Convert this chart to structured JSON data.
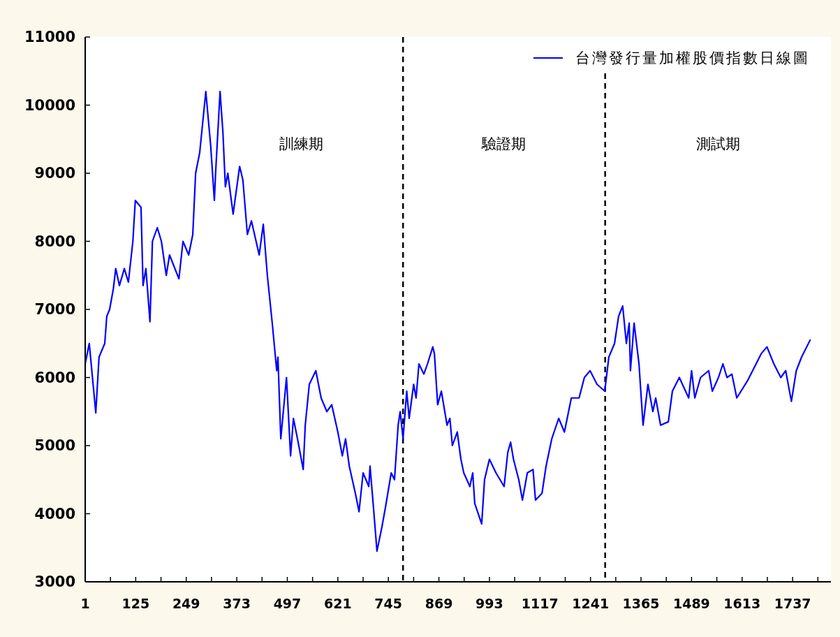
{
  "chart_data": {
    "type": "line",
    "x": [
      1,
      11,
      27,
      35,
      49,
      54,
      61,
      70,
      76,
      85,
      97,
      107,
      118,
      124,
      138,
      143,
      150,
      160,
      166,
      178,
      188,
      200,
      208,
      231,
      241,
      255,
      265,
      272,
      282,
      297,
      309,
      318,
      321,
      332,
      339,
      345,
      351,
      364,
      380,
      388,
      399,
      409,
      428,
      438,
      448,
      460,
      471,
      474,
      481,
      495,
      505,
      512,
      522,
      536,
      541,
      551,
      567,
      580,
      594,
      606,
      621,
      632,
      640,
      649,
      664,
      673,
      683,
      697,
      700,
      709,
      717,
      729,
      738,
      752,
      760,
      769,
      774,
      781,
      790,
      796,
      807,
      813,
      820,
      832,
      841,
      854,
      858,
      866,
      875,
      889,
      896,
      902,
      914,
      923,
      930,
      945,
      952,
      957,
      974,
      981,
      993,
      1009,
      1029,
      1038,
      1045,
      1052,
      1065,
      1074,
      1086,
      1100,
      1106,
      1122,
      1132,
      1146,
      1163,
      1177,
      1194,
      1213,
      1226,
      1240,
      1257,
      1276,
      1286,
      1300,
      1310,
      1320,
      1329,
      1336,
      1339,
      1348,
      1360,
      1370,
      1382,
      1394,
      1401,
      1413,
      1432,
      1442,
      1459,
      1482,
      1489,
      1497,
      1511,
      1531,
      1540,
      1555,
      1566,
      1576,
      1588,
      1600,
      1626,
      1643,
      1660,
      1674,
      1691,
      1708,
      1720,
      1734,
      1746,
      1759,
      1780
    ],
    "series": [
      {
        "name": "台灣發行量加權股價指數日線圖",
        "color": "#0000ff",
        "values": [
          6200,
          6500,
          5480,
          6300,
          6500,
          6900,
          7000,
          7300,
          7600,
          7350,
          7600,
          7400,
          8000,
          8600,
          8500,
          7350,
          7600,
          6820,
          8000,
          8200,
          8000,
          7500,
          7800,
          7450,
          8000,
          7800,
          8100,
          9000,
          9300,
          10200,
          9400,
          8600,
          9000,
          10200,
          9600,
          8800,
          9000,
          8400,
          9100,
          8900,
          8100,
          8300,
          7800,
          8250,
          7500,
          6800,
          6100,
          6300,
          5100,
          6000,
          4850,
          5400,
          5100,
          4650,
          5300,
          5900,
          6100,
          5700,
          5500,
          5600,
          5200,
          4850,
          5100,
          4700,
          4300,
          4030,
          4600,
          4400,
          4700,
          4050,
          3450,
          3800,
          4100,
          4600,
          4500,
          5300,
          5500,
          5100,
          5800,
          5400,
          5900,
          5700,
          6200,
          6050,
          6200,
          6450,
          6350,
          5600,
          5800,
          5300,
          5400,
          5000,
          5200,
          4800,
          4600,
          4400,
          4600,
          4150,
          3850,
          4500,
          4800,
          4600,
          4400,
          4900,
          5050,
          4800,
          4500,
          4200,
          4600,
          4650,
          4200,
          4300,
          4700,
          5100,
          5400,
          5200,
          5700,
          5700,
          6000,
          6100,
          5900,
          5800,
          6300,
          6500,
          6900,
          7050,
          6500,
          6800,
          6100,
          6800,
          6200,
          5300,
          5900,
          5500,
          5700,
          5300,
          5350,
          5800,
          6000,
          5700,
          6100,
          5700,
          6000,
          6100,
          5800,
          6000,
          6200,
          6000,
          6050,
          5700,
          5950,
          6150,
          6350,
          6450,
          6200,
          6000,
          6100,
          5650,
          6100,
          6300,
          6550
        ]
      }
    ],
    "xlim": [
      1,
      1831
    ],
    "xticks": [
      {
        "value": 1,
        "label": "1"
      },
      {
        "value": 63,
        "label": null
      },
      {
        "value": 125,
        "label": "125"
      },
      {
        "value": 187,
        "label": null
      },
      {
        "value": 249,
        "label": "249"
      },
      {
        "value": 311,
        "label": null
      },
      {
        "value": 373,
        "label": "373"
      },
      {
        "value": 435,
        "label": null
      },
      {
        "value": 497,
        "label": "497"
      },
      {
        "value": 559,
        "label": null
      },
      {
        "value": 621,
        "label": "621"
      },
      {
        "value": 683,
        "label": null
      },
      {
        "value": 745,
        "label": "745"
      },
      {
        "value": 807,
        "label": null
      },
      {
        "value": 869,
        "label": "869"
      },
      {
        "value": 931,
        "label": null
      },
      {
        "value": 993,
        "label": "993"
      },
      {
        "value": 1055,
        "label": null
      },
      {
        "value": 1117,
        "label": "1117"
      },
      {
        "value": 1179,
        "label": null
      },
      {
        "value": 1241,
        "label": "1241"
      },
      {
        "value": 1303,
        "label": null
      },
      {
        "value": 1365,
        "label": "1365"
      },
      {
        "value": 1427,
        "label": null
      },
      {
        "value": 1489,
        "label": "1489"
      },
      {
        "value": 1551,
        "label": null
      },
      {
        "value": 1613,
        "label": "1613"
      },
      {
        "value": 1675,
        "label": null
      },
      {
        "value": 1737,
        "label": "1737"
      },
      {
        "value": 1799,
        "label": null
      }
    ],
    "ylim": [
      3000,
      11000
    ],
    "yticks": [
      3000,
      4000,
      5000,
      6000,
      7000,
      8000,
      9000,
      10000,
      11000
    ],
    "ref_lines": [
      {
        "axis": "x",
        "value": 781,
        "line_style": "dashed",
        "color": "#000000"
      },
      {
        "axis": "x",
        "value": 1277,
        "line_style": "dashed",
        "color": "#000000"
      }
    ],
    "annotations": [
      "訓練期",
      "驗證期",
      "測試期"
    ],
    "legend": "top right",
    "grid": false,
    "line_style": "solid",
    "marker": "none"
  }
}
